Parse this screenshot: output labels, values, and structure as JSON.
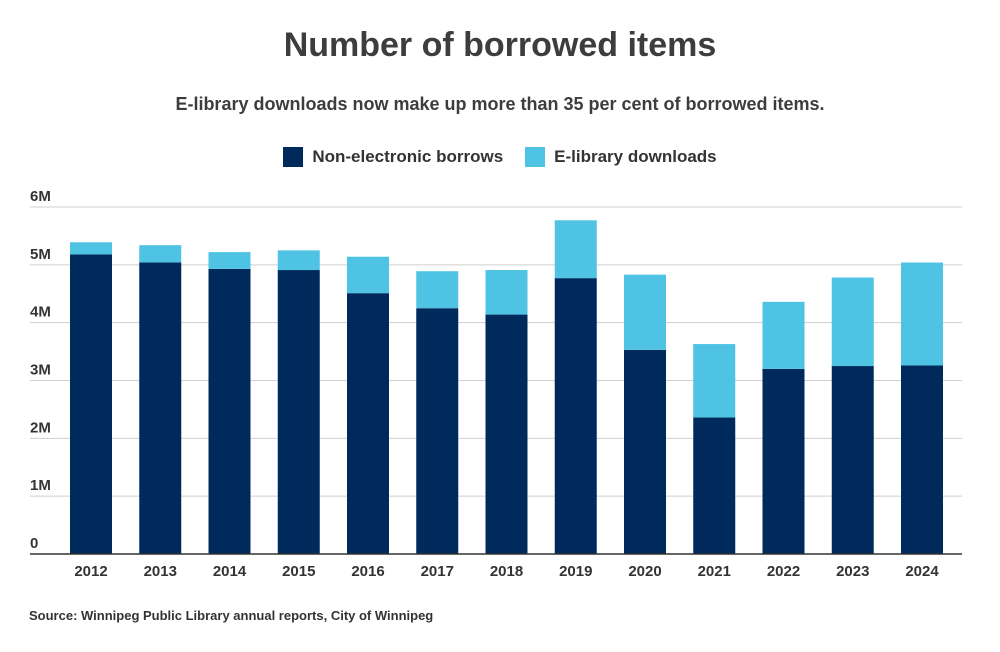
{
  "chart_data": {
    "type": "bar",
    "stacked": true,
    "title": "Number of borrowed items",
    "subtitle": "E-library downloads now make up more than 35 per cent of borrowed items.",
    "categories": [
      "2012",
      "2013",
      "2014",
      "2015",
      "2016",
      "2017",
      "2018",
      "2019",
      "2020",
      "2021",
      "2022",
      "2023",
      "2024"
    ],
    "series": [
      {
        "name": "Non-electronic borrows",
        "color": "#002a5c",
        "values": [
          5180000,
          5040000,
          4930000,
          4910000,
          4510000,
          4250000,
          4140000,
          4770000,
          3530000,
          2360000,
          3200000,
          3250000,
          3260000
        ]
      },
      {
        "name": "E-library downloads",
        "color": "#4fc3e3",
        "values": [
          210000,
          300000,
          290000,
          340000,
          630000,
          640000,
          770000,
          1000000,
          1300000,
          1270000,
          1160000,
          1530000,
          1780000
        ]
      }
    ],
    "ylim": [
      0,
      6000000
    ],
    "yticks": [
      0,
      1000000,
      2000000,
      3000000,
      4000000,
      5000000,
      6000000
    ],
    "ytick_labels": [
      "0",
      "1M",
      "2M",
      "3M",
      "4M",
      "5M",
      "6M"
    ],
    "grid": true,
    "legend_position": "top-center",
    "source": "Source: Winnipeg Public Library annual reports, City of Winnipeg"
  }
}
